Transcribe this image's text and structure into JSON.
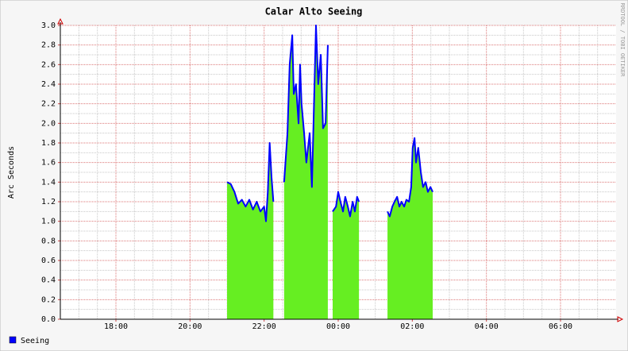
{
  "chart_data": {
    "type": "area",
    "title": "Calar Alto Seeing",
    "y_label": "Arc Seconds",
    "watermark": "RRDTOOL / TOBI OETIKER",
    "xlim": [
      16.5,
      31.5
    ],
    "xticks": [
      {
        "value": 18,
        "label": "18:00"
      },
      {
        "value": 20,
        "label": "20:00"
      },
      {
        "value": 22,
        "label": "22:00"
      },
      {
        "value": 24,
        "label": "00:00"
      },
      {
        "value": 26,
        "label": "02:00"
      },
      {
        "value": 28,
        "label": "04:00"
      },
      {
        "value": 30,
        "label": "06:00"
      }
    ],
    "x_minor_ticks": [
      17,
      17.5,
      18.5,
      19,
      19.5,
      20.5,
      21,
      21.5,
      22.5,
      23,
      23.5,
      24.5,
      25,
      25.5,
      26.5,
      27,
      27.5,
      28.5,
      29,
      29.5,
      30.5,
      31
    ],
    "ylim": [
      0,
      3
    ],
    "yticks": [
      {
        "value": 0,
        "label": "0.0"
      },
      0.2,
      0.4,
      0.6,
      0.8,
      {
        "value": 1,
        "label": "1.0"
      },
      1.2,
      1.4,
      1.6,
      1.8,
      {
        "value": 2,
        "label": "2.0"
      },
      2.2,
      2.4,
      2.6,
      2.8,
      {
        "value": 3,
        "label": "3.0"
      }
    ],
    "y_minor_ticks": [
      0.1,
      0.3,
      0.5,
      0.7,
      0.9,
      1.1,
      1.3,
      1.5,
      1.7,
      1.9,
      2.1,
      2.3,
      2.5,
      2.7,
      2.9
    ],
    "grid": true,
    "legend": "bottom-left",
    "series": [
      {
        "name": "Seeing",
        "color": "#0000ff",
        "area_color": "#66ee22",
        "x": [
          21.0,
          21.1,
          21.2,
          21.3,
          21.4,
          21.5,
          21.6,
          21.7,
          21.8,
          21.9,
          22.0,
          22.05,
          22.1,
          22.15,
          22.2,
          22.25,
          22.4,
          22.54,
          22.63,
          22.69,
          22.76,
          22.8,
          22.86,
          22.93,
          22.97,
          23.01,
          23.08,
          23.14,
          23.23,
          23.29,
          23.36,
          23.4,
          23.46,
          23.53,
          23.59,
          23.66,
          23.72,
          23.78,
          23.85,
          23.94,
          24.0,
          24.06,
          24.13,
          24.19,
          24.26,
          24.32,
          24.39,
          24.45,
          24.51,
          24.56,
          24.9,
          25.33,
          25.39,
          25.46,
          25.52,
          25.59,
          25.65,
          25.71,
          25.78,
          25.84,
          25.91,
          25.97,
          26.01,
          26.06,
          26.1,
          26.16,
          26.23,
          26.29,
          26.36,
          26.42,
          26.49,
          26.55
        ],
        "values": [
          1.4,
          1.38,
          1.3,
          1.18,
          1.22,
          1.15,
          1.22,
          1.12,
          1.2,
          1.1,
          1.15,
          1.0,
          1.3,
          1.8,
          1.45,
          1.2,
          null,
          1.4,
          1.9,
          2.6,
          2.9,
          2.3,
          2.4,
          2.0,
          2.6,
          2.2,
          1.9,
          1.6,
          1.9,
          1.35,
          2.4,
          3.0,
          2.4,
          2.7,
          1.95,
          2.0,
          2.8,
          null,
          1.1,
          1.15,
          1.3,
          1.2,
          1.1,
          1.25,
          1.15,
          1.05,
          1.2,
          1.1,
          1.25,
          1.2,
          null,
          1.1,
          1.05,
          1.15,
          1.2,
          1.25,
          1.15,
          1.2,
          1.15,
          1.22,
          1.2,
          1.35,
          1.75,
          1.85,
          1.6,
          1.75,
          1.5,
          1.35,
          1.4,
          1.3,
          1.35,
          1.3
        ]
      }
    ]
  }
}
